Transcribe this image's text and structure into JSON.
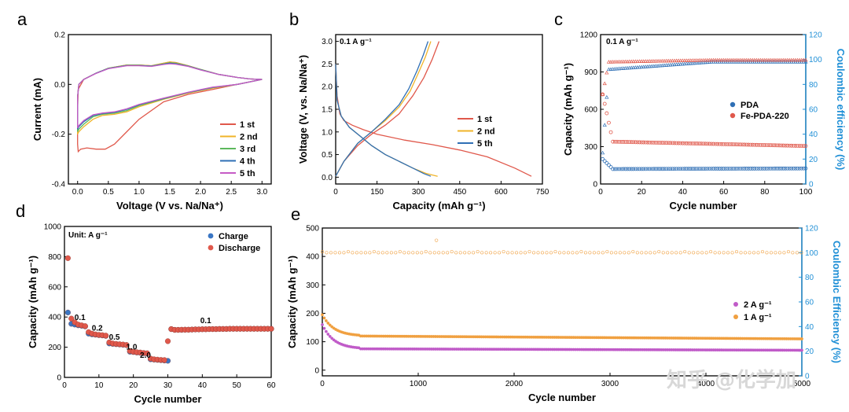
{
  "watermark": "知乎 @化学加",
  "chart_data": [
    {
      "id": "a",
      "type": "line",
      "panel_label": "a",
      "xlabel": "Voltage (V vs. Na/Na⁺)",
      "ylabel": "Current (mA)",
      "xlim": [
        -0.15,
        3.15
      ],
      "ylim": [
        -0.4,
        0.2
      ],
      "xticks": [
        0.0,
        0.5,
        1.0,
        1.5,
        2.0,
        2.5,
        3.0
      ],
      "xtick_labels": [
        "0.0",
        "0.5",
        "1.0",
        "1.5",
        "2.0",
        "2.5",
        "3.0"
      ],
      "yticks": [
        -0.4,
        -0.2,
        0.0,
        0.2
      ],
      "ytick_labels": [
        "-0.4",
        "-0.2",
        "0.0",
        "0.2"
      ],
      "legend_position": "bottom-right",
      "series": [
        {
          "name": "1 st",
          "color": "#e0584b",
          "x": [
            3.0,
            2.6,
            2.2,
            1.8,
            1.4,
            1.0,
            0.8,
            0.6,
            0.45,
            0.3,
            0.15,
            0.05,
            0.01,
            0.0,
            0.0,
            0.01,
            0.1,
            0.3,
            0.5,
            0.8,
            1.0,
            1.2,
            1.4,
            1.5,
            1.6,
            1.8,
            2.0,
            2.3,
            2.6,
            2.8,
            3.0
          ],
          "y": [
            0.02,
            0.0,
            -0.02,
            -0.04,
            -0.07,
            -0.14,
            -0.19,
            -0.24,
            -0.26,
            -0.26,
            -0.255,
            -0.26,
            -0.27,
            -0.24,
            -0.1,
            -0.02,
            0.02,
            0.045,
            0.065,
            0.078,
            0.078,
            0.075,
            0.085,
            0.09,
            0.088,
            0.075,
            0.06,
            0.04,
            0.028,
            0.022,
            0.02
          ]
        },
        {
          "name": "2 nd",
          "color": "#f0b429",
          "x": [
            3.0,
            2.6,
            2.2,
            1.8,
            1.4,
            1.0,
            0.8,
            0.6,
            0.4,
            0.25,
            0.1,
            0.02,
            0.0,
            0.0,
            0.02,
            0.1,
            0.3,
            0.5,
            0.8,
            1.0,
            1.2,
            1.4,
            1.5,
            1.6,
            1.8,
            2.0,
            2.3,
            2.6,
            2.8,
            3.0
          ],
          "y": [
            0.02,
            0.0,
            -0.015,
            -0.035,
            -0.06,
            -0.09,
            -0.11,
            -0.12,
            -0.125,
            -0.14,
            -0.17,
            -0.19,
            -0.2,
            -0.05,
            0.0,
            0.02,
            0.045,
            0.065,
            0.078,
            0.078,
            0.075,
            0.085,
            0.09,
            0.087,
            0.075,
            0.06,
            0.04,
            0.028,
            0.022,
            0.02
          ]
        },
        {
          "name": "3 rd",
          "color": "#5cb85c",
          "x": [
            3.0,
            2.6,
            2.2,
            1.8,
            1.4,
            1.0,
            0.8,
            0.6,
            0.4,
            0.25,
            0.1,
            0.02,
            0.0,
            0.0,
            0.02,
            0.1,
            0.3,
            0.5,
            0.8,
            1.0,
            1.2,
            1.4,
            1.5,
            1.6,
            1.8,
            2.0,
            2.3,
            2.6,
            2.8,
            3.0
          ],
          "y": [
            0.02,
            0.0,
            -0.013,
            -0.033,
            -0.058,
            -0.085,
            -0.105,
            -0.115,
            -0.12,
            -0.13,
            -0.16,
            -0.18,
            -0.19,
            -0.05,
            0.0,
            0.02,
            0.045,
            0.065,
            0.077,
            0.077,
            0.074,
            0.083,
            0.087,
            0.085,
            0.074,
            0.06,
            0.04,
            0.028,
            0.022,
            0.02
          ]
        },
        {
          "name": "4 th",
          "color": "#2f6fb5",
          "x": [
            3.0,
            2.6,
            2.2,
            1.8,
            1.4,
            1.0,
            0.8,
            0.6,
            0.4,
            0.25,
            0.1,
            0.02,
            0.0,
            0.0,
            0.02,
            0.1,
            0.3,
            0.5,
            0.8,
            1.0,
            1.2,
            1.4,
            1.5,
            1.6,
            1.8,
            2.0,
            2.3,
            2.6,
            2.8,
            3.0
          ],
          "y": [
            0.02,
            0.0,
            -0.012,
            -0.032,
            -0.056,
            -0.082,
            -0.1,
            -0.112,
            -0.117,
            -0.125,
            -0.15,
            -0.17,
            -0.18,
            -0.05,
            0.0,
            0.02,
            0.045,
            0.064,
            0.076,
            0.076,
            0.073,
            0.081,
            0.085,
            0.083,
            0.073,
            0.059,
            0.04,
            0.028,
            0.022,
            0.02
          ]
        },
        {
          "name": "5 th",
          "color": "#c65bc6",
          "x": [
            3.0,
            2.6,
            2.2,
            1.8,
            1.4,
            1.0,
            0.8,
            0.6,
            0.4,
            0.25,
            0.1,
            0.02,
            0.0,
            0.0,
            0.02,
            0.1,
            0.3,
            0.5,
            0.8,
            1.0,
            1.2,
            1.4,
            1.5,
            1.6,
            1.8,
            2.0,
            2.3,
            2.6,
            2.8,
            3.0
          ],
          "y": [
            0.02,
            0.0,
            -0.011,
            -0.031,
            -0.055,
            -0.08,
            -0.098,
            -0.11,
            -0.115,
            -0.122,
            -0.145,
            -0.165,
            -0.175,
            -0.05,
            0.0,
            0.02,
            0.044,
            0.063,
            0.075,
            0.075,
            0.072,
            0.08,
            0.083,
            0.081,
            0.072,
            0.058,
            0.04,
            0.028,
            0.022,
            0.02
          ]
        }
      ]
    },
    {
      "id": "b",
      "type": "line",
      "panel_label": "b",
      "annotation": "0.1 A g⁻¹",
      "xlabel": "Capacity (mAh g⁻¹)",
      "ylabel": "Voltage (V, vs. Na/Na⁺)",
      "xlim": [
        0,
        750
      ],
      "ylim": [
        -0.15,
        3.15
      ],
      "xticks": [
        0,
        150,
        300,
        450,
        600,
        750
      ],
      "xtick_labels": [
        "0",
        "150",
        "300",
        "450",
        "600",
        "750"
      ],
      "yticks": [
        0.0,
        0.5,
        1.0,
        1.5,
        2.0,
        2.5,
        3.0
      ],
      "ytick_labels": [
        "0.0",
        "0.5",
        "1.0",
        "1.5",
        "2.0",
        "2.5",
        "3.0"
      ],
      "legend_position": "middle-right",
      "series": [
        {
          "name": "1 st",
          "color": "#e0584b",
          "discharge": {
            "x": [
              0,
              5,
              15,
              30,
              60,
              100,
              150,
              250,
              350,
              450,
              550,
              650,
              710
            ],
            "y": [
              2.5,
              1.8,
              1.4,
              1.25,
              1.15,
              1.05,
              0.95,
              0.82,
              0.72,
              0.6,
              0.45,
              0.2,
              0.02
            ]
          },
          "charge": {
            "x": [
              0,
              30,
              80,
              130,
              180,
              230,
              280,
              320,
              350,
              375
            ],
            "y": [
              0.02,
              0.35,
              0.7,
              0.95,
              1.15,
              1.4,
              1.8,
              2.2,
              2.6,
              3.0
            ]
          }
        },
        {
          "name": "2 nd",
          "color": "#f0b429",
          "discharge": {
            "x": [
              0,
              5,
              20,
              50,
              90,
              130,
              180,
              230,
              280,
              330,
              370
            ],
            "y": [
              2.5,
              1.7,
              1.35,
              1.1,
              0.9,
              0.7,
              0.5,
              0.35,
              0.2,
              0.08,
              0.02
            ]
          },
          "charge": {
            "x": [
              0,
              30,
              80,
              130,
              180,
              230,
              270,
              300,
              325,
              345
            ],
            "y": [
              0.02,
              0.35,
              0.75,
              1.0,
              1.25,
              1.55,
              1.9,
              2.3,
              2.65,
              3.0
            ]
          }
        },
        {
          "name": "5 th",
          "color": "#2f6fb5",
          "discharge": {
            "x": [
              0,
              5,
              20,
              50,
              90,
              130,
              180,
              230,
              280,
              320,
              345
            ],
            "y": [
              2.5,
              1.7,
              1.35,
              1.1,
              0.9,
              0.7,
              0.5,
              0.35,
              0.2,
              0.08,
              0.02
            ]
          },
          "charge": {
            "x": [
              0,
              30,
              80,
              130,
              180,
              230,
              265,
              295,
              318,
              335
            ],
            "y": [
              0.02,
              0.35,
              0.75,
              1.0,
              1.28,
              1.6,
              1.95,
              2.35,
              2.7,
              3.0
            ]
          }
        }
      ]
    },
    {
      "id": "c",
      "type": "scatter",
      "panel_label": "c",
      "annotation": "0.1 A g⁻¹",
      "xlabel": "Cycle number",
      "ylabel": "Capacity (mAh g⁻¹)",
      "y2label": "Coulombic efficiency (%)",
      "xlim": [
        0,
        100
      ],
      "ylim": [
        0,
        1200
      ],
      "y2lim": [
        0,
        120
      ],
      "xticks": [
        0,
        20,
        40,
        60,
        80,
        100
      ],
      "xtick_labels": [
        "0",
        "20",
        "40",
        "60",
        "80",
        "100"
      ],
      "yticks": [
        0,
        300,
        600,
        900,
        1200
      ],
      "ytick_labels": [
        "0",
        "300",
        "600",
        "900",
        "1200"
      ],
      "y2ticks": [
        0,
        20,
        40,
        60,
        80,
        100,
        120
      ],
      "y2tick_labels": [
        "0",
        "20",
        "40",
        "60",
        "80",
        "100",
        "120"
      ],
      "legend_position": "middle-right",
      "series": [
        {
          "name": "PDA",
          "color": "#2f6fb5",
          "capacity_start": 200,
          "capacity_mid": 120,
          "capacity_end": 125,
          "ce_start": 25,
          "ce_plateau": 92,
          "ce_end": 98
        },
        {
          "name": "Fe-PDA-220",
          "color": "#e0584b",
          "capacity_start": 720,
          "capacity_mid": 340,
          "capacity_end": 305,
          "ce_start": 72,
          "ce_plateau": 98,
          "ce_end": 99.5
        }
      ]
    },
    {
      "id": "d",
      "type": "scatter",
      "panel_label": "d",
      "annotation": "Unit: A g⁻¹",
      "xlabel": "Cycle number",
      "ylabel": "Capacity (mAh g⁻¹)",
      "xlim": [
        0,
        60
      ],
      "ylim": [
        0,
        1000
      ],
      "xticks": [
        0,
        10,
        20,
        30,
        40,
        50,
        60
      ],
      "xtick_labels": [
        "0",
        "10",
        "20",
        "30",
        "40",
        "50",
        "60"
      ],
      "yticks": [
        0,
        200,
        400,
        600,
        800,
        1000
      ],
      "ytick_labels": [
        "0",
        "200",
        "400",
        "600",
        "800",
        "1000"
      ],
      "legend_position": "top-right",
      "rate_labels": [
        {
          "text": "0.1",
          "x": 4.5,
          "y": 380
        },
        {
          "text": "0.2",
          "x": 9.5,
          "y": 310
        },
        {
          "text": "0.5",
          "x": 14.5,
          "y": 250
        },
        {
          "text": "1.0",
          "x": 19.5,
          "y": 185
        },
        {
          "text": "2.0",
          "x": 23.5,
          "y": 130
        },
        {
          "text": "0.1",
          "x": 41,
          "y": 360
        }
      ],
      "series": [
        {
          "name": "Charge",
          "color": "#3a76c4",
          "x": [
            1,
            2,
            3,
            4,
            5,
            6,
            7,
            8,
            9,
            10,
            11,
            12,
            13,
            14,
            15,
            16,
            17,
            18,
            19,
            20,
            21,
            22,
            23,
            24,
            25,
            26,
            27,
            28,
            29,
            30,
            31,
            32,
            33,
            34,
            35,
            36,
            37,
            38,
            39,
            40,
            41,
            42,
            43,
            44,
            45,
            46,
            47,
            48,
            49,
            50,
            51,
            52,
            53,
            54,
            55,
            56,
            57,
            58,
            59,
            60
          ],
          "y": [
            430,
            355,
            350,
            345,
            342,
            338,
            290,
            285,
            283,
            280,
            278,
            275,
            225,
            222,
            220,
            218,
            216,
            214,
            170,
            168,
            165,
            163,
            160,
            158,
            120,
            118,
            116,
            114,
            112,
            110,
            320,
            315,
            315,
            315,
            316,
            316,
            317,
            318,
            318,
            319,
            319,
            320,
            320,
            320,
            321,
            321,
            321,
            322,
            322,
            322,
            322,
            322,
            322,
            322,
            322,
            322,
            322,
            322,
            322,
            322
          ]
        },
        {
          "name": "Discharge",
          "color": "#e0584b",
          "x": [
            1,
            2,
            3,
            4,
            5,
            6,
            7,
            8,
            9,
            10,
            11,
            12,
            13,
            14,
            15,
            16,
            17,
            18,
            19,
            20,
            21,
            22,
            23,
            24,
            25,
            26,
            27,
            28,
            29,
            30,
            31,
            32,
            33,
            34,
            35,
            36,
            37,
            38,
            39,
            40,
            41,
            42,
            43,
            44,
            45,
            46,
            47,
            48,
            49,
            50,
            51,
            52,
            53,
            54,
            55,
            56,
            57,
            58,
            59,
            60
          ],
          "y": [
            790,
            390,
            365,
            350,
            345,
            340,
            300,
            290,
            285,
            282,
            280,
            277,
            232,
            225,
            222,
            220,
            218,
            215,
            175,
            170,
            167,
            165,
            162,
            160,
            125,
            120,
            118,
            116,
            115,
            240,
            320,
            315,
            315,
            316,
            316,
            316,
            317,
            318,
            318,
            319,
            319,
            320,
            320,
            320,
            321,
            321,
            321,
            322,
            322,
            322,
            322,
            322,
            322,
            322,
            322,
            322,
            322,
            322,
            322,
            322
          ]
        }
      ]
    },
    {
      "id": "e",
      "type": "scatter",
      "panel_label": "e",
      "xlabel": "Cycle number",
      "ylabel": "Capacity (mAh g⁻¹)",
      "y2label": "Coulombic Efficiency (%)",
      "xlim": [
        0,
        5000
      ],
      "ylim": [
        -20,
        500
      ],
      "y2lim": [
        0,
        120
      ],
      "xticks": [
        0,
        1000,
        2000,
        3000,
        4000,
        5000
      ],
      "xtick_labels": [
        "0",
        "1000",
        "2000",
        "3000",
        "4000",
        "5000"
      ],
      "yticks": [
        0,
        100,
        200,
        300,
        400,
        500
      ],
      "ytick_labels": [
        "0",
        "100",
        "200",
        "300",
        "400",
        "500"
      ],
      "y2ticks": [
        0,
        20,
        40,
        60,
        80,
        100,
        120
      ],
      "y2tick_labels": [
        "0",
        "20",
        "40",
        "60",
        "80",
        "100",
        "120"
      ],
      "legend_position": "middle-right",
      "series": [
        {
          "name": "2 A g⁻¹",
          "color": "#c05bc8",
          "capacity_start": 160,
          "capacity_plateau": 75,
          "capacity_end": 70
        },
        {
          "name": "1 A g⁻¹",
          "color": "#f0a040",
          "capacity_start": 195,
          "capacity_plateau": 120,
          "capacity_end": 110,
          "ce_value": 100
        }
      ]
    }
  ]
}
